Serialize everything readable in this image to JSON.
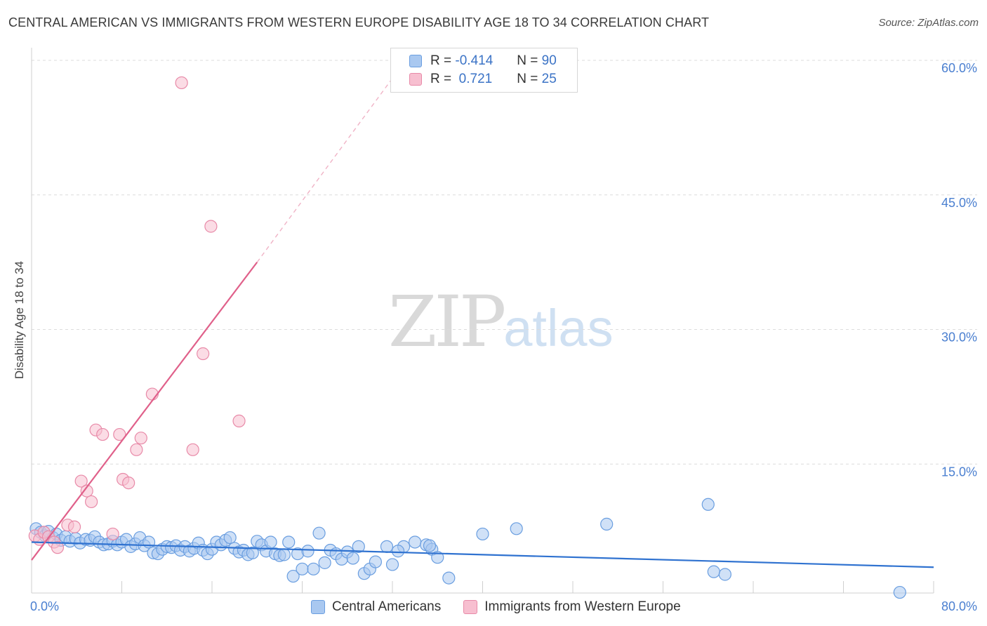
{
  "header": {
    "title": "CENTRAL AMERICAN VS IMMIGRANTS FROM WESTERN EUROPE DISABILITY AGE 18 TO 34 CORRELATION CHART",
    "source": "Source: ZipAtlas.com"
  },
  "watermark": {
    "zip": "ZIP",
    "atlas": "atlas"
  },
  "legend": {
    "rows": [
      {
        "r_label": "R =",
        "r_value": "-0.414",
        "n_label": "N =",
        "n_value": "90",
        "color": "#a9c8f0",
        "border": "#6a9ee0"
      },
      {
        "r_label": "R =",
        "r_value": " 0.721",
        "n_label": "N =",
        "n_value": "25",
        "color": "#f7bfd0",
        "border": "#e88aa8"
      }
    ]
  },
  "bottom_legend": {
    "items": [
      {
        "label": "Central Americans",
        "color": "#a9c8f0",
        "border": "#6a9ee0"
      },
      {
        "label": "Immigrants from Western Europe",
        "color": "#f7bfd0",
        "border": "#e88aa8"
      }
    ]
  },
  "chart_data": {
    "type": "scatter",
    "title": "CENTRAL AMERICAN VS IMMIGRANTS FROM WESTERN EUROPE DISABILITY AGE 18 TO 34 CORRELATION CHART",
    "xlabel": "",
    "ylabel": "Disability Age 18 to 34",
    "xlim": [
      0,
      80
    ],
    "ylim": [
      0,
      60
    ],
    "x_tick_labels": [
      "0.0%",
      "80.0%"
    ],
    "y_ticks": [
      15,
      30,
      45,
      60
    ],
    "y_tick_labels": [
      "15.0%",
      "30.0%",
      "45.0%",
      "60.0%"
    ],
    "grid": true,
    "legend_position": "top-center",
    "series": [
      {
        "name": "Central Americans",
        "color": "#6a9ee0",
        "fill": "#a9c8f0",
        "R": -0.414,
        "N": 90,
        "trend": {
          "x": [
            0,
            80
          ],
          "y": [
            6.3,
            3.5
          ],
          "style": "solid",
          "color": "#2f72d0"
        },
        "points": [
          [
            0.4,
            7.8
          ],
          [
            0.8,
            7.4
          ],
          [
            1.2,
            7.0
          ],
          [
            1.5,
            7.5
          ],
          [
            1.9,
            6.8
          ],
          [
            2.2,
            7.2
          ],
          [
            2.6,
            6.5
          ],
          [
            3.0,
            6.9
          ],
          [
            3.4,
            6.4
          ],
          [
            3.9,
            6.7
          ],
          [
            4.3,
            6.2
          ],
          [
            4.8,
            6.6
          ],
          [
            5.2,
            6.5
          ],
          [
            5.6,
            6.9
          ],
          [
            6.0,
            6.3
          ],
          [
            6.4,
            6.0
          ],
          [
            6.8,
            6.1
          ],
          [
            7.2,
            6.4
          ],
          [
            7.6,
            6.0
          ],
          [
            8.0,
            6.3
          ],
          [
            8.4,
            6.6
          ],
          [
            8.8,
            5.8
          ],
          [
            9.2,
            6.1
          ],
          [
            9.6,
            6.8
          ],
          [
            10.0,
            5.9
          ],
          [
            10.4,
            6.3
          ],
          [
            10.8,
            5.1
          ],
          [
            11.2,
            5.0
          ],
          [
            11.6,
            5.5
          ],
          [
            12.0,
            5.8
          ],
          [
            12.4,
            5.7
          ],
          [
            12.8,
            5.9
          ],
          [
            13.2,
            5.4
          ],
          [
            13.6,
            5.8
          ],
          [
            14.0,
            5.3
          ],
          [
            14.4,
            5.6
          ],
          [
            14.8,
            6.2
          ],
          [
            15.2,
            5.4
          ],
          [
            15.6,
            5.0
          ],
          [
            16.0,
            5.5
          ],
          [
            16.4,
            6.3
          ],
          [
            16.8,
            6.0
          ],
          [
            17.2,
            6.5
          ],
          [
            17.6,
            6.8
          ],
          [
            18.0,
            5.6
          ],
          [
            18.4,
            5.2
          ],
          [
            18.8,
            5.4
          ],
          [
            19.2,
            4.9
          ],
          [
            19.6,
            5.1
          ],
          [
            20.0,
            6.4
          ],
          [
            20.4,
            6.0
          ],
          [
            20.8,
            5.3
          ],
          [
            21.2,
            6.3
          ],
          [
            21.6,
            5.0
          ],
          [
            22.0,
            4.8
          ],
          [
            22.4,
            4.9
          ],
          [
            22.8,
            6.3
          ],
          [
            23.2,
            2.5
          ],
          [
            23.6,
            5.0
          ],
          [
            24.0,
            3.3
          ],
          [
            24.5,
            5.3
          ],
          [
            25.0,
            3.3
          ],
          [
            25.5,
            7.3
          ],
          [
            26.0,
            4.0
          ],
          [
            26.5,
            5.4
          ],
          [
            27.0,
            5.0
          ],
          [
            27.5,
            4.4
          ],
          [
            28.0,
            5.2
          ],
          [
            28.5,
            4.5
          ],
          [
            29.0,
            5.8
          ],
          [
            29.5,
            2.8
          ],
          [
            30.0,
            3.3
          ],
          [
            30.5,
            4.1
          ],
          [
            31.5,
            5.8
          ],
          [
            32.0,
            3.8
          ],
          [
            33.0,
            5.8
          ],
          [
            34.0,
            6.3
          ],
          [
            35.0,
            6.0
          ],
          [
            35.5,
            5.5
          ],
          [
            36.0,
            4.6
          ],
          [
            37.0,
            2.3
          ],
          [
            40.0,
            7.2
          ],
          [
            43.0,
            7.8
          ],
          [
            51.0,
            8.3
          ],
          [
            60.0,
            10.5
          ],
          [
            60.5,
            3.0
          ],
          [
            61.5,
            2.7
          ],
          [
            35.3,
            5.9
          ],
          [
            32.5,
            5.3
          ],
          [
            77.0,
            0.7
          ]
        ]
      },
      {
        "name": "Immigrants from Western Europe",
        "color": "#e88aa8",
        "fill": "#f7bfd0",
        "R": 0.721,
        "N": 25,
        "trend": {
          "x": [
            0,
            20
          ],
          "y": [
            4.3,
            37.5
          ],
          "style": "solid",
          "color": "#e0608a",
          "dashed_extension": {
            "x": [
              20,
              32
            ],
            "y": [
              37.5,
              58.0
            ]
          }
        },
        "points": [
          [
            0.3,
            7.0
          ],
          [
            0.7,
            6.6
          ],
          [
            1.1,
            7.4
          ],
          [
            1.5,
            6.9
          ],
          [
            2.0,
            6.3
          ],
          [
            2.3,
            5.7
          ],
          [
            3.2,
            8.2
          ],
          [
            3.8,
            8.0
          ],
          [
            4.4,
            13.1
          ],
          [
            4.9,
            12.0
          ],
          [
            5.3,
            10.8
          ],
          [
            5.7,
            18.8
          ],
          [
            6.3,
            18.3
          ],
          [
            7.2,
            7.2
          ],
          [
            7.8,
            18.3
          ],
          [
            8.1,
            13.3
          ],
          [
            8.6,
            12.9
          ],
          [
            9.3,
            16.6
          ],
          [
            9.7,
            17.9
          ],
          [
            10.7,
            22.8
          ],
          [
            13.3,
            57.5
          ],
          [
            14.3,
            16.6
          ],
          [
            15.2,
            27.3
          ],
          [
            15.9,
            41.5
          ],
          [
            18.4,
            19.8
          ]
        ]
      }
    ]
  }
}
